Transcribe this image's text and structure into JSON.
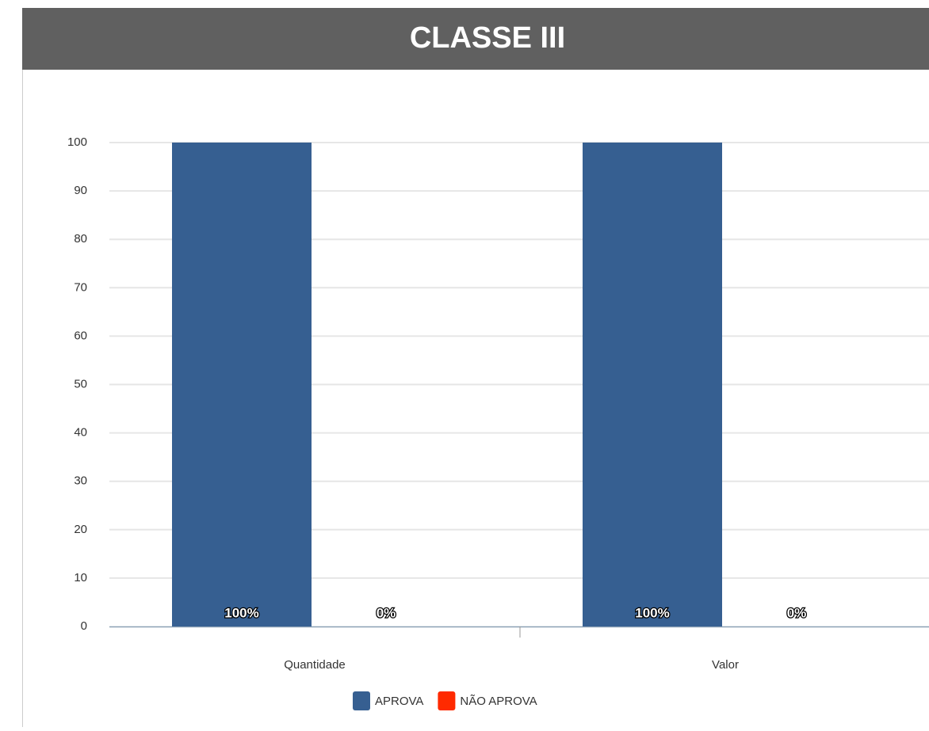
{
  "chart_data": {
    "type": "bar",
    "title": "CLASSE III",
    "categories": [
      "Quantidade",
      "Valor"
    ],
    "series": [
      {
        "name": "APROVA",
        "color": "#365f91",
        "values": [
          100,
          100
        ],
        "value_labels": [
          "100%",
          "100%"
        ]
      },
      {
        "name": "NÃO APROVA",
        "color": "#ff2a00",
        "values": [
          0,
          0
        ],
        "value_labels": [
          "0%",
          "0%"
        ]
      }
    ],
    "ylim": [
      0,
      100
    ],
    "yticks": [
      0,
      10,
      20,
      30,
      40,
      50,
      60,
      70,
      80,
      90,
      100
    ],
    "grid": true
  }
}
